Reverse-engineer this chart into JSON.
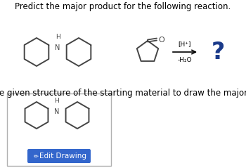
{
  "title": "Predict the major product for the following reaction.",
  "subtitle": "Modify the given structure of the starting material to draw the major product.",
  "bg_color": "#ffffff",
  "box_bg": "#ffffff",
  "box_border": "#b0b0b0",
  "button_color": "#3366cc",
  "button_text": "Edit Drawing",
  "button_text_color": "#ffffff",
  "question_mark_color": "#1a3a8a",
  "reaction_arrow_color": "#000000",
  "reagents_line1": "[H⁺]",
  "reagents_line2": "-H₂O",
  "structure_color": "#444444",
  "cyclopentanone_color": "#444444",
  "title_fontsize": 8.5,
  "subtitle_fontsize": 8.5
}
